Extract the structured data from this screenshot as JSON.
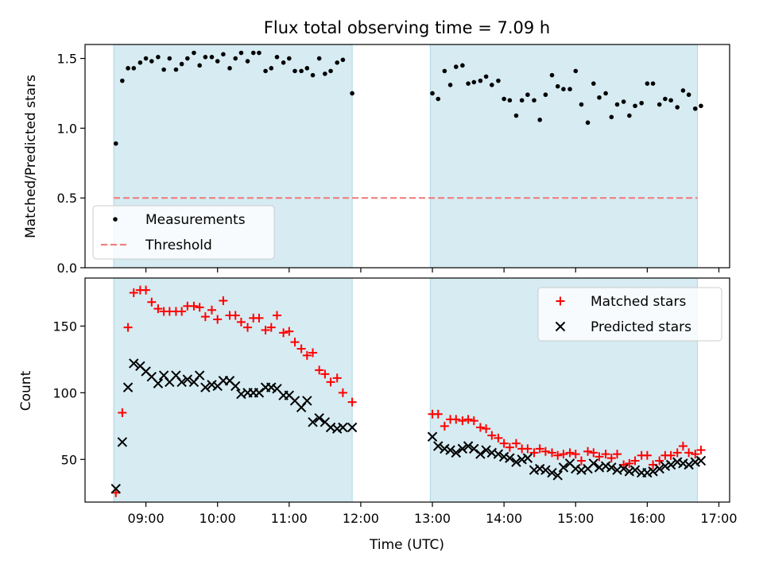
{
  "chart_data": [
    {
      "type": "scatter",
      "title": "Flux total observing time = 7.09 h",
      "xlabel": "",
      "ylabel": "Matched/Predicted stars",
      "x_unit": "hours (UTC)",
      "xlim": [
        8.15,
        17.15
      ],
      "ylim": [
        0,
        1.6
      ],
      "yticks": [
        "0.0",
        "0.5",
        "1.0",
        "1.5"
      ],
      "xticks": [
        "09:00",
        "10:00",
        "11:00",
        "12:00",
        "13:00",
        "14:00",
        "15:00",
        "16:00",
        "17:00"
      ],
      "show_xtick_labels": false,
      "shaded_spans": [
        [
          8.55,
          11.88
        ],
        [
          12.97,
          16.7
        ]
      ],
      "shade_color": "#add8e6",
      "legend": {
        "position": "lower-left",
        "entries": [
          "Measurements",
          "Threshold"
        ]
      },
      "series": [
        {
          "name": "Measurements",
          "marker": "dot",
          "color": "#000000",
          "x": [
            8.58,
            8.67,
            8.75,
            8.83,
            8.92,
            9.0,
            9.08,
            9.17,
            9.25,
            9.33,
            9.42,
            9.5,
            9.58,
            9.67,
            9.75,
            9.83,
            9.92,
            10.0,
            10.08,
            10.17,
            10.25,
            10.33,
            10.42,
            10.5,
            10.58,
            10.67,
            10.75,
            10.83,
            10.92,
            11.0,
            11.08,
            11.17,
            11.25,
            11.33,
            11.42,
            11.5,
            11.58,
            11.67,
            11.75,
            11.88,
            13.0,
            13.08,
            13.17,
            13.25,
            13.33,
            13.42,
            13.5,
            13.58,
            13.67,
            13.75,
            13.83,
            13.92,
            14.0,
            14.08,
            14.17,
            14.25,
            14.33,
            14.42,
            14.5,
            14.58,
            14.67,
            14.75,
            14.83,
            14.92,
            15.0,
            15.08,
            15.17,
            15.25,
            15.33,
            15.42,
            15.5,
            15.58,
            15.67,
            15.75,
            15.83,
            15.92,
            16.0,
            16.08,
            16.17,
            16.25,
            16.33,
            16.42,
            16.5,
            16.58,
            16.67,
            16.75
          ],
          "y": [
            0.89,
            1.34,
            1.43,
            1.43,
            1.47,
            1.5,
            1.48,
            1.51,
            1.42,
            1.5,
            1.42,
            1.46,
            1.5,
            1.54,
            1.45,
            1.51,
            1.51,
            1.48,
            1.53,
            1.43,
            1.5,
            1.54,
            1.48,
            1.54,
            1.54,
            1.41,
            1.43,
            1.51,
            1.47,
            1.5,
            1.41,
            1.41,
            1.43,
            1.38,
            1.5,
            1.39,
            1.41,
            1.47,
            1.49,
            1.25,
            1.25,
            1.21,
            1.41,
            1.31,
            1.44,
            1.45,
            1.32,
            1.33,
            1.34,
            1.37,
            1.31,
            1.34,
            1.21,
            1.2,
            1.09,
            1.2,
            1.24,
            1.2,
            1.06,
            1.24,
            1.38,
            1.3,
            1.28,
            1.28,
            1.41,
            1.17,
            1.04,
            1.32,
            1.22,
            1.25,
            1.08,
            1.17,
            1.19,
            1.09,
            1.16,
            1.18,
            1.32,
            1.32,
            1.17,
            1.21,
            1.2,
            1.15,
            1.27,
            1.24,
            1.14,
            1.16
          ]
        },
        {
          "name": "Threshold",
          "marker": "dashed-line",
          "color": "#f08080",
          "x": [
            8.55,
            16.7
          ],
          "y": [
            0.5,
            0.5
          ]
        }
      ]
    },
    {
      "type": "scatter",
      "title": "",
      "xlabel": "Time (UTC)",
      "ylabel": "Count",
      "x_unit": "hours (UTC)",
      "xlim": [
        8.15,
        17.15
      ],
      "ylim": [
        18,
        186
      ],
      "yticks": [
        "50",
        "100",
        "150"
      ],
      "xticks": [
        "09:00",
        "10:00",
        "11:00",
        "12:00",
        "13:00",
        "14:00",
        "15:00",
        "16:00",
        "17:00"
      ],
      "show_xtick_labels": true,
      "shaded_spans": [
        [
          8.55,
          11.88
        ],
        [
          12.97,
          16.7
        ]
      ],
      "shade_color": "#add8e6",
      "legend": {
        "position": "top-right",
        "entries": [
          "Matched stars",
          "Predicted stars"
        ]
      },
      "series": [
        {
          "name": "Matched stars",
          "marker": "plus",
          "color": "#ff0000",
          "x": [
            8.58,
            8.67,
            8.75,
            8.83,
            8.92,
            9.0,
            9.08,
            9.17,
            9.25,
            9.33,
            9.42,
            9.5,
            9.58,
            9.67,
            9.75,
            9.83,
            9.92,
            10.0,
            10.08,
            10.17,
            10.25,
            10.33,
            10.42,
            10.5,
            10.58,
            10.67,
            10.75,
            10.83,
            10.92,
            11.0,
            11.08,
            11.17,
            11.25,
            11.33,
            11.42,
            11.5,
            11.58,
            11.67,
            11.75,
            11.88,
            13.0,
            13.08,
            13.17,
            13.25,
            13.33,
            13.42,
            13.5,
            13.58,
            13.67,
            13.75,
            13.83,
            13.92,
            14.0,
            14.08,
            14.17,
            14.25,
            14.33,
            14.42,
            14.5,
            14.58,
            14.67,
            14.75,
            14.83,
            14.92,
            15.0,
            15.08,
            15.17,
            15.25,
            15.33,
            15.42,
            15.5,
            15.58,
            15.67,
            15.75,
            15.83,
            15.92,
            16.0,
            16.08,
            16.17,
            16.25,
            16.33,
            16.42,
            16.5,
            16.58,
            16.67,
            16.75
          ],
          "y": [
            25,
            85,
            149,
            175,
            177,
            177,
            168,
            163,
            161,
            161,
            161,
            161,
            165,
            165,
            164,
            157,
            162,
            155,
            169,
            158,
            158,
            153,
            149,
            156,
            156,
            147,
            149,
            158,
            145,
            146,
            138,
            133,
            128,
            130,
            117,
            114,
            108,
            111,
            100,
            93,
            84,
            84,
            75,
            80,
            80,
            79,
            80,
            79,
            74,
            73,
            68,
            66,
            62,
            59,
            62,
            58,
            58,
            55,
            58,
            56,
            55,
            53,
            54,
            55,
            54,
            49,
            56,
            55,
            52,
            54,
            51,
            54,
            46,
            47,
            49,
            53,
            53,
            46,
            49,
            53,
            53,
            55,
            60,
            55,
            54,
            57
          ]
        },
        {
          "name": "Predicted stars",
          "marker": "cross",
          "color": "#000000",
          "x": [
            8.58,
            8.67,
            8.75,
            8.83,
            8.92,
            9.0,
            9.08,
            9.17,
            9.25,
            9.33,
            9.42,
            9.5,
            9.58,
            9.67,
            9.75,
            9.83,
            9.92,
            10.0,
            10.08,
            10.17,
            10.25,
            10.33,
            10.42,
            10.5,
            10.58,
            10.67,
            10.75,
            10.83,
            10.92,
            11.0,
            11.08,
            11.17,
            11.25,
            11.33,
            11.42,
            11.5,
            11.58,
            11.67,
            11.75,
            11.88,
            13.0,
            13.08,
            13.17,
            13.25,
            13.33,
            13.42,
            13.5,
            13.58,
            13.67,
            13.75,
            13.83,
            13.92,
            14.0,
            14.08,
            14.17,
            14.25,
            14.33,
            14.42,
            14.5,
            14.58,
            14.67,
            14.75,
            14.83,
            14.92,
            15.0,
            15.08,
            15.17,
            15.25,
            15.33,
            15.42,
            15.5,
            15.58,
            15.67,
            15.75,
            15.83,
            15.92,
            16.0,
            16.08,
            16.17,
            16.25,
            16.33,
            16.42,
            16.5,
            16.58,
            16.67,
            16.75
          ],
          "y": [
            28,
            63,
            104,
            122,
            120,
            116,
            112,
            107,
            113,
            108,
            113,
            108,
            110,
            108,
            113,
            104,
            106,
            105,
            109,
            109,
            105,
            99,
            100,
            100,
            100,
            104,
            104,
            103,
            98,
            98,
            94,
            89,
            94,
            78,
            81,
            78,
            74,
            73,
            74,
            74,
            67,
            60,
            58,
            57,
            55,
            58,
            60,
            58,
            54,
            57,
            55,
            54,
            52,
            51,
            48,
            50,
            51,
            42,
            43,
            42,
            40,
            38,
            44,
            47,
            43,
            42,
            43,
            47,
            44,
            45,
            44,
            42,
            43,
            41,
            42,
            40,
            40,
            41,
            43,
            45,
            46,
            48,
            47,
            46,
            48,
            49
          ]
        }
      ]
    }
  ]
}
